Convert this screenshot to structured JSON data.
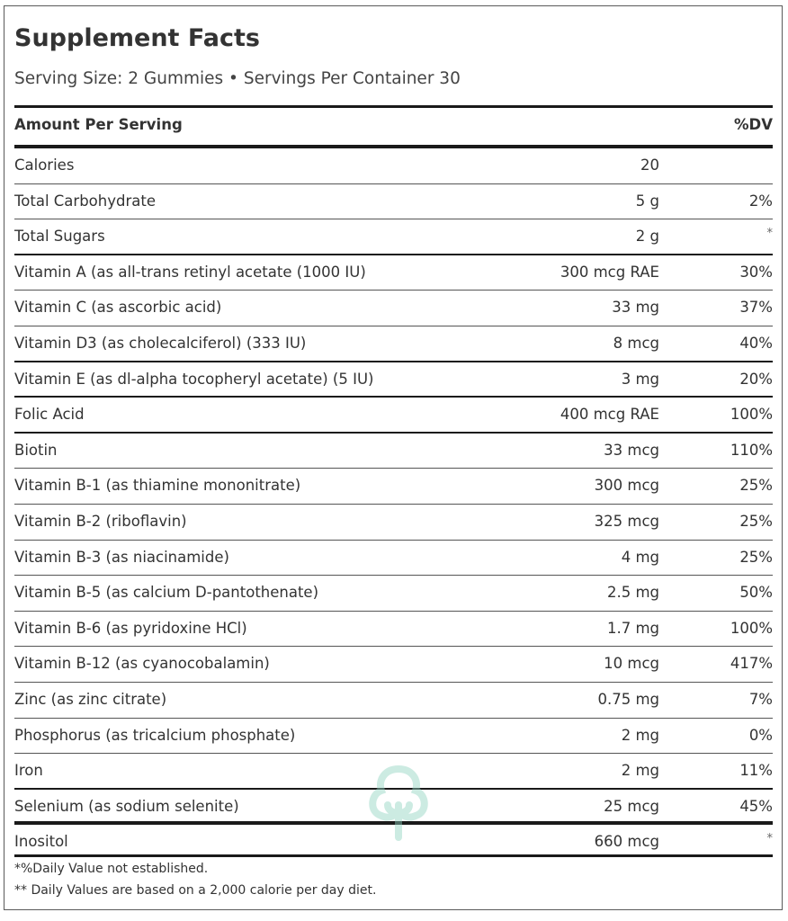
{
  "header": {
    "title": "Supplement Facts",
    "serving_line": "Serving Size: 2 Gummies • Servings Per Container 30"
  },
  "columns": {
    "amount_per_serving": "Amount Per Serving",
    "dv": "%DV"
  },
  "rows": [
    {
      "name": "Calories",
      "amount": "20",
      "dv": ""
    },
    {
      "name": "Total Carbohydrate",
      "amount": "5 g",
      "dv": "2%"
    },
    {
      "name": "Total Sugars",
      "amount": "2 g",
      "dv": "*"
    },
    {
      "name": "Vitamin A (as all-trans retinyl acetate (1000 IU)",
      "amount": "300 mcg RAE",
      "dv": "30%"
    },
    {
      "name": "Vitamin C (as ascorbic acid)",
      "amount": "33 mg",
      "dv": "37%"
    },
    {
      "name": "Vitamin D3 (as cholecalciferol) (333 IU)",
      "amount": "8 mcg",
      "dv": "40%"
    },
    {
      "name": "Vitamin E (as dl-alpha tocopheryl acetate) (5 IU)",
      "amount": "3 mg",
      "dv": "20%"
    },
    {
      "name": "Folic Acid",
      "amount": "400 mcg RAE",
      "dv": "100%"
    },
    {
      "name": "Biotin",
      "amount": "33 mcg",
      "dv": "110%"
    },
    {
      "name": "Vitamin B-1 (as thiamine mononitrate)",
      "amount": "300 mcg",
      "dv": "25%"
    },
    {
      "name": "Vitamin B-2 (riboflavin)",
      "amount": "325 mcg",
      "dv": "25%"
    },
    {
      "name": "Vitamin B-3 (as niacinamide)",
      "amount": "4 mg",
      "dv": "25%"
    },
    {
      "name": "Vitamin B-5 (as calcium D-pantothenate)",
      "amount": "2.5 mg",
      "dv": "50%"
    },
    {
      "name": "Vitamin B-6 (as pyridoxine HCl)",
      "amount": "1.7 mg",
      "dv": "100%"
    },
    {
      "name": "Vitamin B-12 (as cyanocobalamin)",
      "amount": "10 mcg",
      "dv": "417%"
    },
    {
      "name": "Zinc (as zinc citrate)",
      "amount": "0.75 mg",
      "dv": "7%"
    },
    {
      "name": "Phosphorus (as tricalcium phosphate)",
      "amount": "2 mg",
      "dv": "0%"
    },
    {
      "name": "Iron",
      "amount": "2 mg",
      "dv": "11%"
    },
    {
      "name": "Selenium (as sodium selenite)",
      "amount": "25 mcg",
      "dv": "45%"
    },
    {
      "name": "Inositol",
      "amount": "660 mcg",
      "dv": "*"
    }
  ],
  "footnotes": [
    "*%Daily Value not established.",
    "** Daily Values are based on a 2,000 calorie per day diet."
  ],
  "watermark": {
    "icon": "tree-logo-icon",
    "color": "#8fd3c1"
  }
}
